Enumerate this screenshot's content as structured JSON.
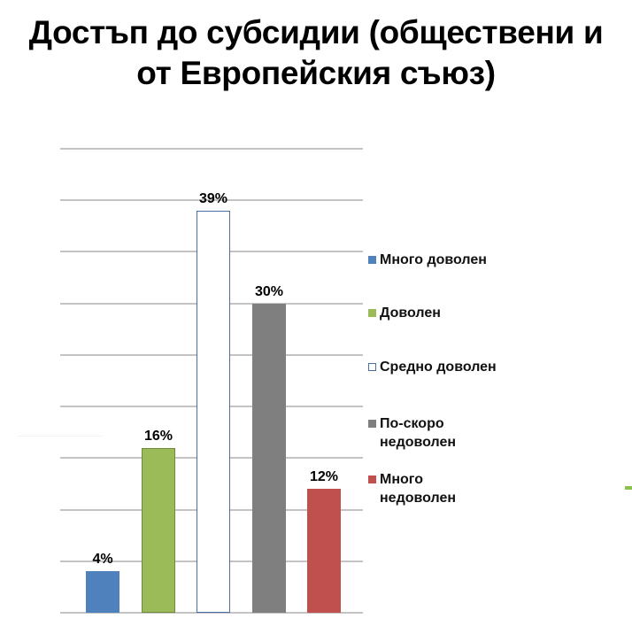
{
  "title": "Достъп до субсидии (обществени и от Европейския съюз)",
  "title_lines": [
    "Достъп до субсидии (обществени и",
    "от Европейския съюз)"
  ],
  "chart_data": {
    "type": "bar",
    "title": "Достъп до субсидии (обществени и от Европейския съюз)",
    "categories": [
      "Много доволен",
      "Доволен",
      "Средно доволен",
      "По-скоро недоволен",
      "Много недоволен"
    ],
    "values": [
      4,
      16,
      39,
      30,
      12
    ],
    "value_labels": [
      "4%",
      "16%",
      "39%",
      "30%",
      "12%"
    ],
    "colors": [
      "#4f81bd",
      "#9bbb59",
      "#ffffff",
      "#7f7f7f",
      "#c0504d"
    ],
    "unit": "%",
    "xlabel": "",
    "ylabel": "",
    "ylim": [
      0,
      45
    ],
    "grid_step": 5,
    "grid": true,
    "y_tick_labels_visible": false,
    "legend_position": "right",
    "legend": [
      "Много доволен",
      "Доволен",
      "Средно доволен",
      "По-скоро недоволен",
      "Много недоволен"
    ]
  }
}
